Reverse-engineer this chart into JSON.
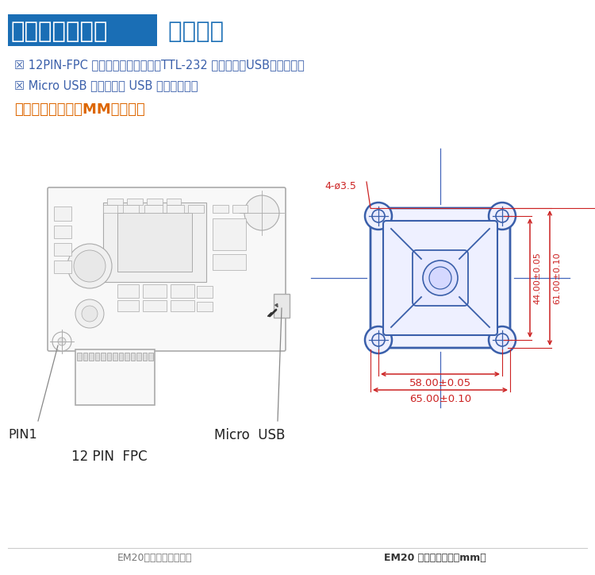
{
  "bg_color": "#ffffff",
  "title_box_color": "#1a6eb5",
  "title_white_text": "体积小、功能大",
  "title_blue_text": " 便于安装",
  "bullet1": "☒ 12PIN-FPC 可被复用为两种形式：TTL-232 通讯形式和USB通讯形式。",
  "bullet2": "☒ Micro USB 仅作为标准 USB 接口使用。。",
  "note": "注：所有单位均为MM（毫米）",
  "caption_left": "EM20解码板上的接口图",
  "caption_right": "EM20 前视图（单位：mm）",
  "label_pin1": "PIN1",
  "label_usb": "Micro  USB",
  "label_fpc": "12 PIN  FPC",
  "dim_hole": "4-ø3.5",
  "dim_44": "44.00±0.05",
  "dim_61": "61.00±0.10",
  "dim_58": "58.00±0.05",
  "dim_65": "65.00±0.10",
  "blue_color": "#3a5faa",
  "red_color": "#cc2222",
  "text_color": "#3a5faa",
  "note_color": "#dd6600",
  "pcb_line_color": "#aaaaaa",
  "pcb_fill_color": "#f8f8f8"
}
